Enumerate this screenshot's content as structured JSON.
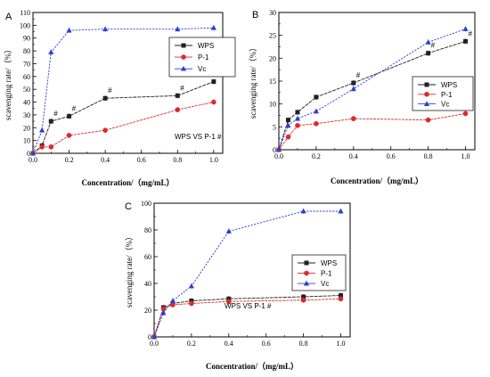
{
  "chart_data": [
    {
      "panel": "A",
      "type": "line",
      "xlabel": "Concentration/（mg/mL）",
      "ylabel": "scavenging rate/（%）",
      "xlim": [
        0,
        1.05
      ],
      "ylim": [
        0,
        110
      ],
      "xticks": [
        "0.0",
        "0.2",
        "0.4",
        "0.6",
        "0.8",
        "1.0"
      ],
      "yticks": [
        "0",
        "10",
        "20",
        "30",
        "40",
        "50",
        "60",
        "70",
        "80",
        "90",
        "100",
        "110"
      ],
      "x": [
        0,
        0.05,
        0.1,
        0.2,
        0.4,
        0.8,
        1.0
      ],
      "legend_position": "top-right",
      "annotation": "WPS VS P-1 #",
      "marks": [
        "#",
        "#",
        "#",
        "#",
        "#"
      ],
      "mark_x": [
        0.1,
        0.2,
        0.4,
        0.8,
        1.0
      ],
      "series": [
        {
          "name": "WPS",
          "values": [
            0,
            6,
            25,
            29,
            43,
            45,
            56
          ],
          "color": "#222222",
          "marker": "square"
        },
        {
          "name": "P-1",
          "values": [
            0,
            5,
            5,
            14,
            18,
            34,
            40
          ],
          "color": "#e0282a",
          "marker": "circle"
        },
        {
          "name": "Vc",
          "values": [
            0,
            18,
            79,
            96,
            97,
            97,
            98
          ],
          "color": "#2b3fd6",
          "marker": "triangle"
        }
      ]
    },
    {
      "panel": "B",
      "type": "line",
      "xlabel": "Concentration/（mg/mL）",
      "ylabel": "scavenging rate/（%）",
      "xlim": [
        0,
        1.05
      ],
      "ylim": [
        0,
        30
      ],
      "xticks": [
        "0.0",
        "0.2",
        "0.4",
        "0.6",
        "0.8",
        "1.0"
      ],
      "yticks": [
        "0",
        "5",
        "10",
        "15",
        "20",
        "25",
        "30"
      ],
      "x": [
        0,
        0.05,
        0.1,
        0.2,
        0.4,
        0.8,
        1.0
      ],
      "legend_position": "right",
      "marks": [
        "#",
        "#",
        "#"
      ],
      "mark_x": [
        0.4,
        0.8,
        1.0
      ],
      "series": [
        {
          "name": "WPS",
          "values": [
            0,
            6.5,
            8.2,
            11.5,
            14.6,
            21.1,
            23.7
          ],
          "color": "#222222",
          "marker": "square"
        },
        {
          "name": "P-1",
          "values": [
            0,
            2.8,
            5.3,
            5.7,
            6.8,
            6.5,
            7.9
          ],
          "color": "#e0282a",
          "marker": "circle"
        },
        {
          "name": "Vc",
          "values": [
            0,
            5.3,
            6.8,
            8.4,
            13.3,
            23.5,
            26.4
          ],
          "color": "#2b3fd6",
          "marker": "triangle"
        }
      ]
    },
    {
      "panel": "C",
      "type": "line",
      "xlabel": "Concentration/（mg/mL）",
      "ylabel": "scavenging rate/（%）",
      "xlim": [
        0,
        1.05
      ],
      "ylim": [
        0,
        100
      ],
      "xticks": [
        "0.0",
        "0.2",
        "0.4",
        "0.6",
        "0.8",
        "1.0"
      ],
      "yticks": [
        "0",
        "20",
        "40",
        "60",
        "80",
        "100"
      ],
      "x": [
        0,
        0.05,
        0.1,
        0.2,
        0.4,
        0.8,
        1.0
      ],
      "legend_position": "right",
      "annotation": "WPS VS P-1 #",
      "series": [
        {
          "name": "WPS",
          "values": [
            0,
            22,
            25,
            27,
            28.5,
            30,
            31
          ],
          "color": "#222222",
          "marker": "square"
        },
        {
          "name": "P-1",
          "values": [
            0,
            21,
            24,
            25,
            26.5,
            27.5,
            28.5
          ],
          "color": "#e0282a",
          "marker": "circle"
        },
        {
          "name": "Vc",
          "values": [
            0,
            18,
            27,
            38,
            79,
            94,
            94
          ],
          "color": "#2b3fd6",
          "marker": "triangle"
        }
      ]
    }
  ]
}
